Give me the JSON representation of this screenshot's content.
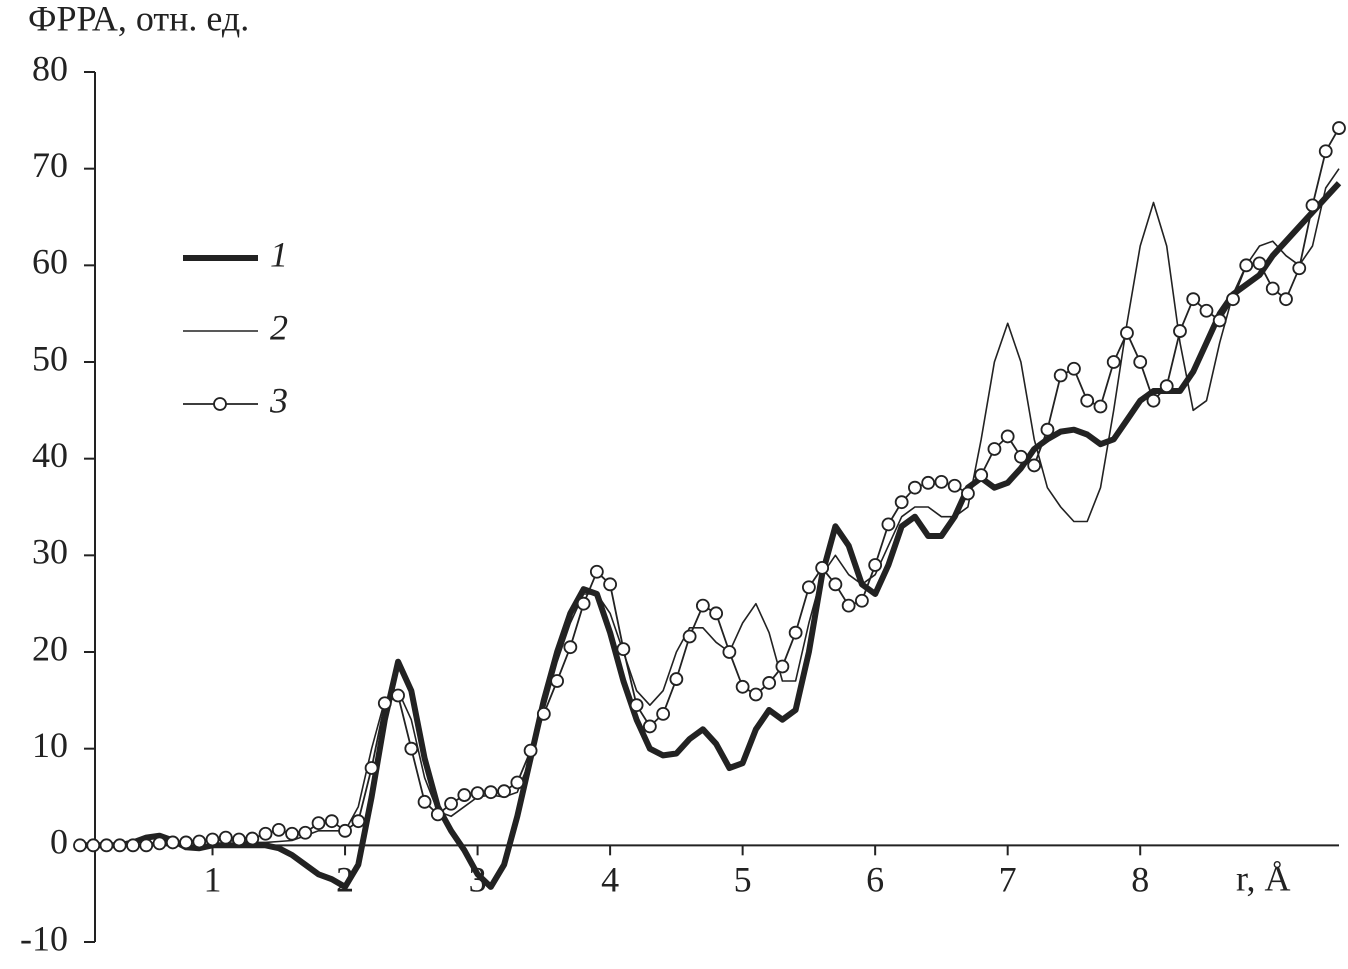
{
  "chart_data": {
    "type": "line",
    "y_label": "ФРРА, отн. ед.",
    "x_label": "r, Å",
    "x": [
      0,
      0.1,
      0.2,
      0.3,
      0.4,
      0.5,
      0.6,
      0.7,
      0.8,
      0.9,
      1,
      1.1,
      1.2,
      1.3,
      1.4,
      1.5,
      1.6,
      1.7,
      1.8,
      1.9,
      2,
      2.1,
      2.2,
      2.3,
      2.4,
      2.5,
      2.6,
      2.7,
      2.8,
      2.9,
      3,
      3.1,
      3.2,
      3.3,
      3.4,
      3.5,
      3.6,
      3.7,
      3.8,
      3.9,
      4,
      4.1,
      4.2,
      4.3,
      4.4,
      4.5,
      4.6,
      4.7,
      4.8,
      4.9,
      5,
      5.1,
      5.2,
      5.3,
      5.4,
      5.5,
      5.6,
      5.7,
      5.8,
      5.9,
      6,
      6.1,
      6.2,
      6.3,
      6.4,
      6.5,
      6.6,
      6.7,
      6.8,
      6.9,
      7,
      7.1,
      7.2,
      7.3,
      7.4,
      7.5,
      7.6,
      7.7,
      7.8,
      7.9,
      8,
      8.1,
      8.2,
      8.3,
      8.4,
      8.5,
      8.6,
      8.7,
      8.8,
      8.9,
      9,
      9.1,
      9.2,
      9.3,
      9.4,
      9.5
    ],
    "series": [
      {
        "name": "1",
        "color": "#222222",
        "style": "thick",
        "values": [
          0,
          0,
          0,
          0,
          0.3,
          0.8,
          1,
          0.5,
          -0.2,
          -0.3,
          0,
          0,
          0,
          0,
          0,
          -0.3,
          -1,
          -2,
          -3,
          -3.5,
          -4.3,
          -2,
          5,
          13,
          19,
          16,
          9,
          4,
          1.5,
          -0.5,
          -3,
          -4.3,
          -2,
          3,
          9,
          15,
          20,
          24,
          26.5,
          26,
          22,
          17,
          13,
          10,
          9.3,
          9.5,
          11,
          12,
          10.5,
          8,
          8.5,
          12,
          14,
          13,
          14,
          20,
          28,
          33,
          31,
          27,
          26,
          29,
          33,
          34,
          32,
          32,
          34,
          37,
          38,
          37,
          37.5,
          39,
          41,
          42,
          42.8,
          43,
          42.5,
          41.5,
          42,
          44,
          46,
          47,
          47,
          47,
          49,
          52,
          55,
          57,
          58,
          59,
          61,
          62.5,
          64,
          65.5,
          67,
          68.5
        ]
      },
      {
        "name": "2",
        "color": "#222222",
        "style": "thin",
        "values": [
          0,
          0,
          0,
          0,
          0,
          0.2,
          0.3,
          0.3,
          0.2,
          0.3,
          0.5,
          0.5,
          0.4,
          0.3,
          0.3,
          0.4,
          0.5,
          1,
          1.5,
          1.5,
          1.5,
          4,
          10,
          15,
          16,
          13,
          7,
          3.5,
          3,
          4,
          5,
          5.2,
          5,
          5.5,
          9,
          14,
          19,
          23,
          26,
          26,
          24,
          20,
          16,
          14.5,
          16,
          20,
          22.5,
          22.5,
          21,
          20,
          23,
          25,
          22,
          17,
          17,
          23,
          28,
          30,
          28,
          27,
          28,
          31,
          34,
          35,
          35,
          34,
          34,
          35,
          42,
          50,
          54,
          50,
          42,
          37,
          35,
          33.5,
          33.5,
          37,
          45,
          54,
          62,
          66.5,
          62,
          52,
          45,
          46,
          52,
          57,
          60,
          62,
          62.5,
          61,
          60,
          62,
          68,
          70
        ]
      },
      {
        "name": "3",
        "color": "#222222",
        "style": "markers",
        "values": [
          0,
          0,
          0,
          0,
          0,
          0,
          0.2,
          0.3,
          0.3,
          0.4,
          0.6,
          0.8,
          0.6,
          0.7,
          1.2,
          1.6,
          1.2,
          1.3,
          2.3,
          2.5,
          1.5,
          2.5,
          8,
          14.7,
          15.5,
          10,
          4.5,
          3.2,
          4.3,
          5.2,
          5.4,
          5.5,
          5.6,
          6.5,
          9.8,
          13.6,
          17,
          20.5,
          25,
          28.3,
          27,
          20.3,
          14.5,
          12.3,
          13.6,
          17.2,
          21.6,
          24.8,
          24,
          20,
          16.4,
          15.6,
          16.8,
          18.5,
          22,
          26.7,
          28.7,
          27,
          24.8,
          25.3,
          29,
          33.2,
          35.5,
          37,
          37.5,
          37.6,
          37.2,
          36.4,
          38.3,
          41,
          42.3,
          40.2,
          39.3,
          43,
          48.6,
          49.3,
          46,
          45.4,
          50,
          53,
          50,
          46,
          47.5,
          53.2,
          56.5,
          55.3,
          54.3,
          56.5,
          60,
          60.2,
          57.6,
          56.5,
          59.7,
          66.2,
          71.8,
          74.2
        ]
      }
    ],
    "xlim": [
      0,
      9.5
    ],
    "xticks": [
      1,
      2,
      3,
      4,
      5,
      6,
      7,
      8
    ],
    "ylim": [
      -10,
      80
    ],
    "yticks": [
      -10,
      0,
      10,
      20,
      30,
      40,
      50,
      60,
      70,
      80
    ],
    "grid": false,
    "legend": "left"
  }
}
